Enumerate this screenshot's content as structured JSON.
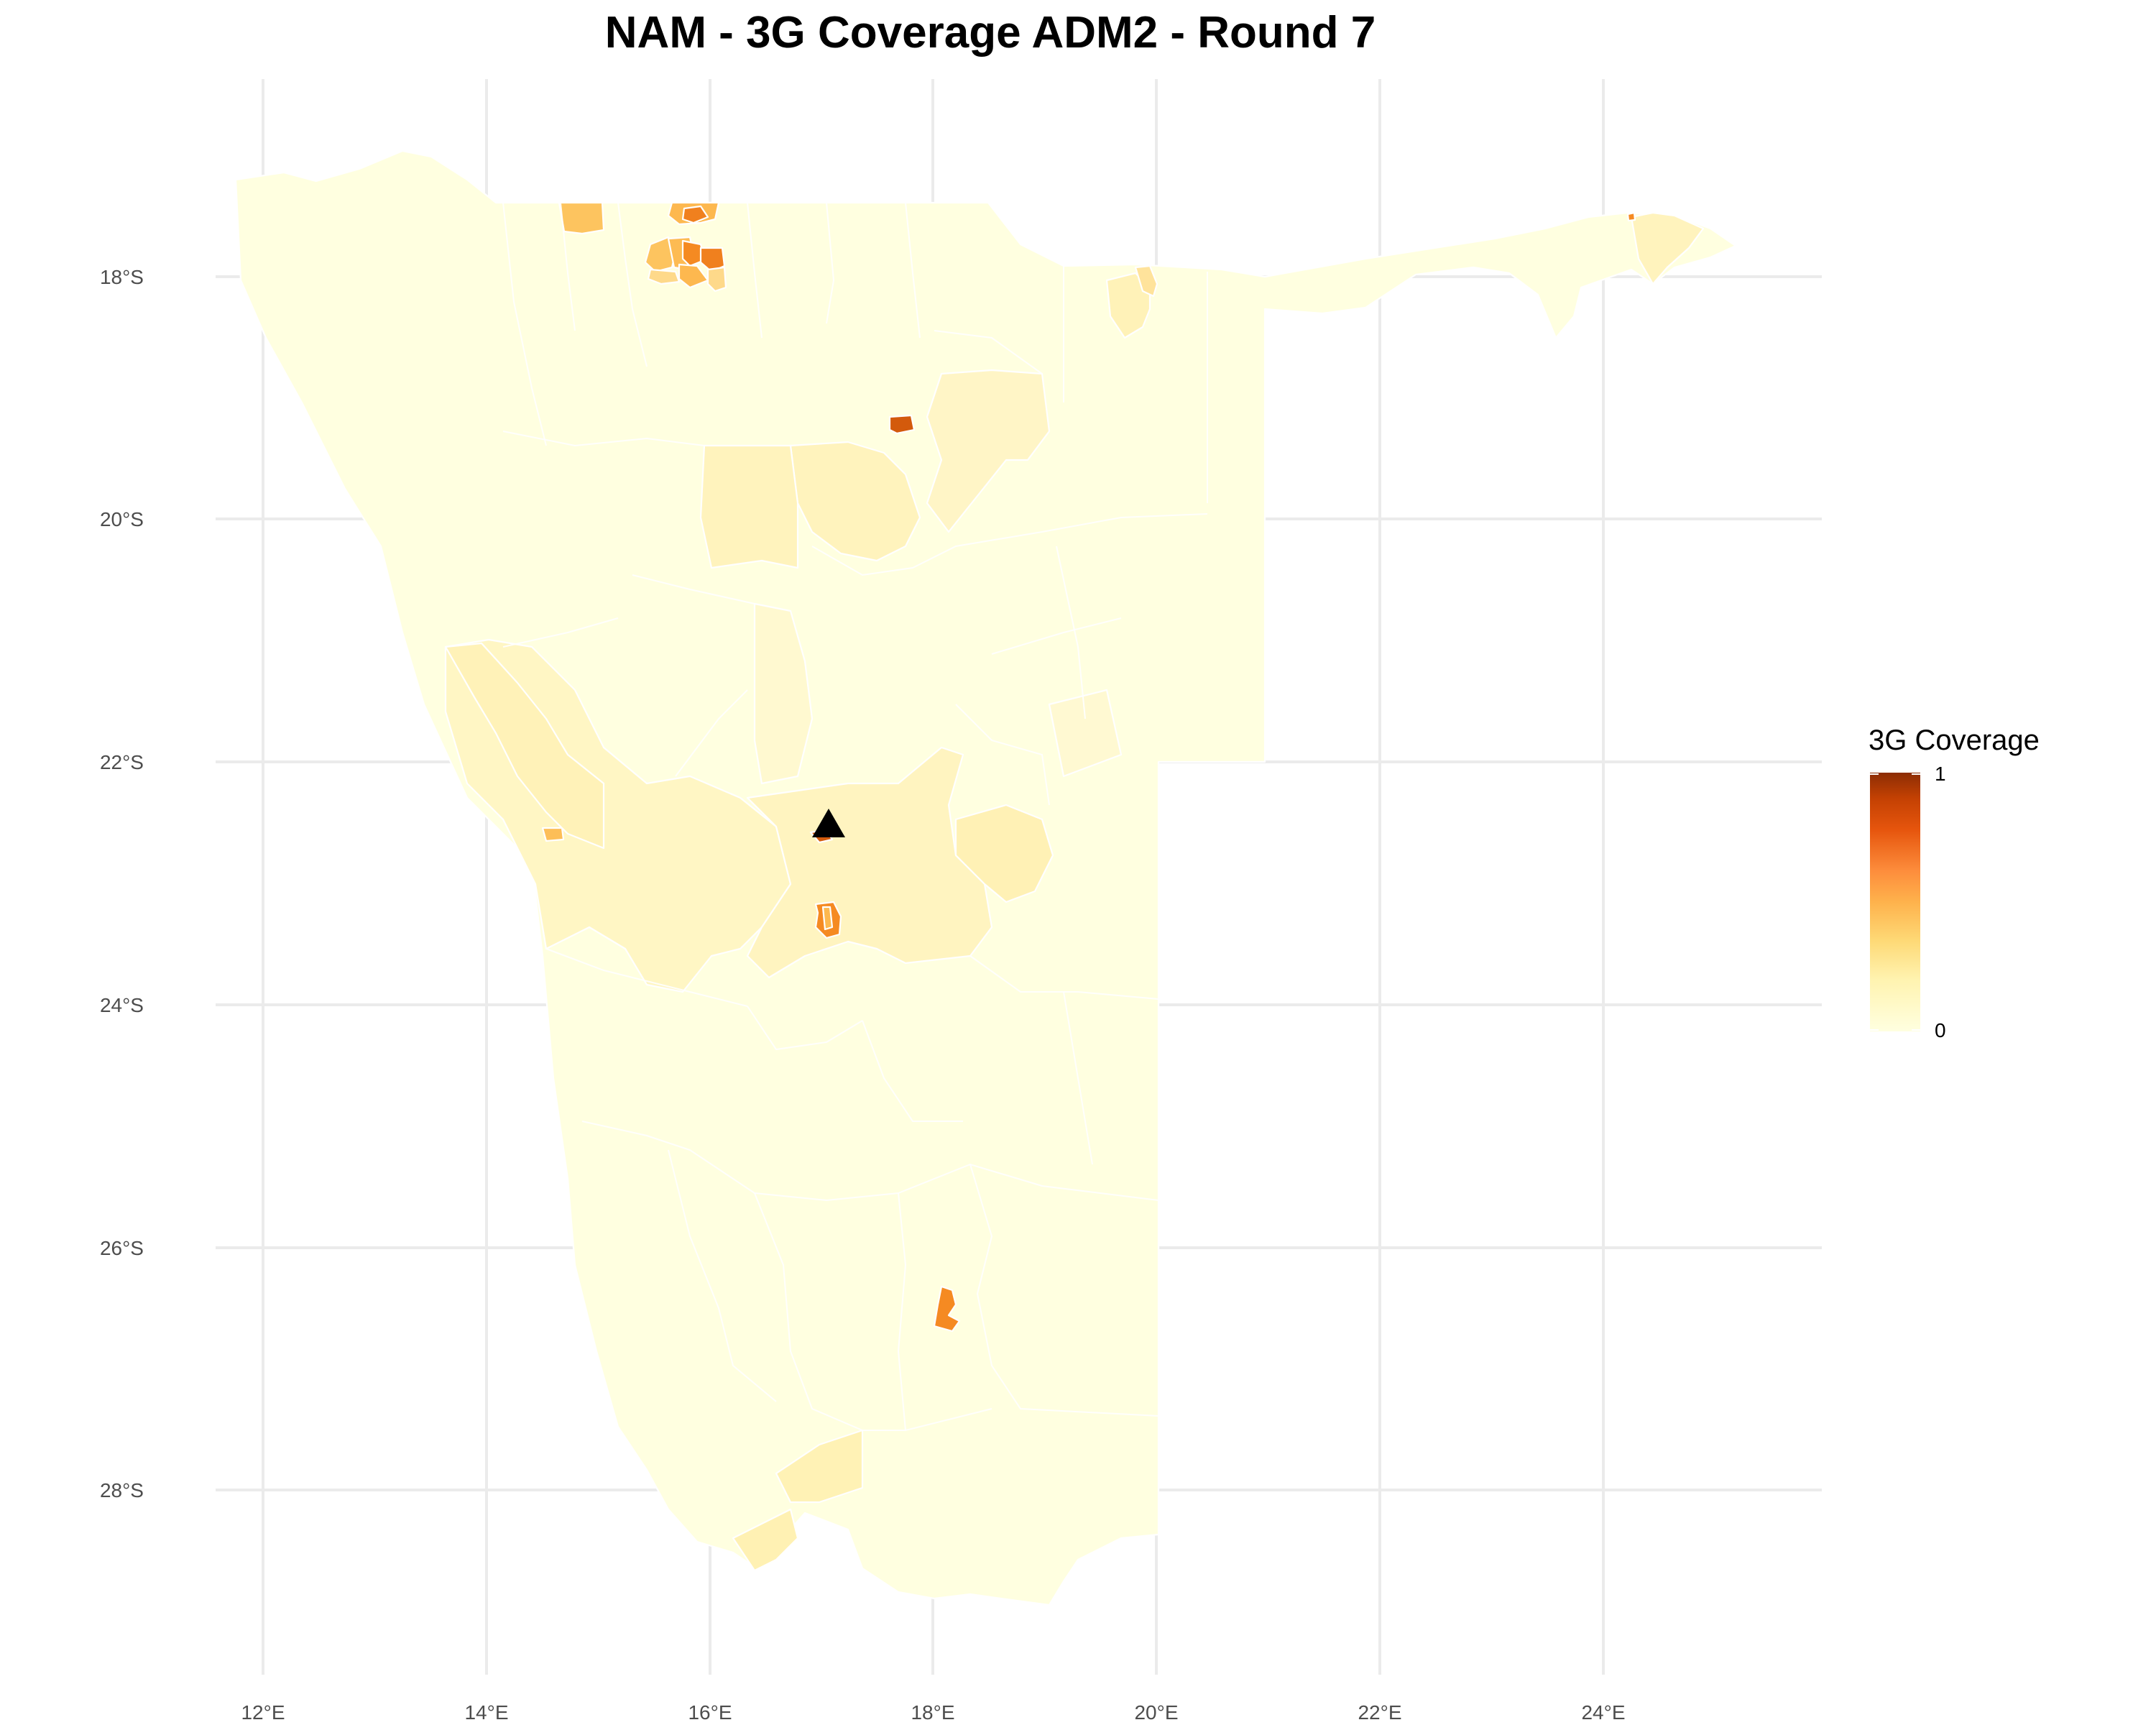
{
  "title": "NAM - 3G Coverage ADM2 - Round 7",
  "axes": {
    "x_ticks": [
      "12°E",
      "14°E",
      "16°E",
      "18°E",
      "20°E",
      "22°E",
      "24°E"
    ],
    "y_ticks": [
      "18°S",
      "20°S",
      "22°S",
      "24°S",
      "26°S",
      "28°S"
    ]
  },
  "legend": {
    "title": "3G Coverage",
    "max_label": "1",
    "min_label": "0",
    "colors": [
      "#ffffe0",
      "#fff3b0",
      "#fed976",
      "#feb24c",
      "#fd8d3c",
      "#e6550d",
      "#c44103",
      "#8c2d04"
    ]
  },
  "marker": {
    "shape": "triangle",
    "color": "#000000",
    "lon": 17.08,
    "lat": -22.56
  },
  "chart_data": {
    "type": "choropleth",
    "title": "NAM - 3G Coverage ADM2 - Round 7",
    "variable": "3G Coverage",
    "value_range": [
      0,
      1
    ],
    "xlim_deg_e": [
      11.5,
      25.5
    ],
    "ylim_deg_s": [
      17.0,
      29.2
    ],
    "grid": true,
    "legend_position": "right",
    "colors": {
      "base": "#ffffe0",
      "very_low": "#fffbd2",
      "low": "#fff3bf",
      "mid_low": "#feeaa8",
      "mid": "#fdd28a",
      "high": "#fdb548",
      "very_high": "#f58a22",
      "max": "#d35a0c"
    },
    "regions": [
      {
        "lon": 14.8,
        "lat": -17.5,
        "value": 0.35
      },
      {
        "lon": 15.9,
        "lat": -17.5,
        "value": 0.45
      },
      {
        "lon": 15.7,
        "lat": -17.9,
        "value": 0.5
      },
      {
        "lon": 17.6,
        "lat": -19.2,
        "value": 0.8
      },
      {
        "lon": 17.1,
        "lat": -23.3,
        "value": 0.6
      },
      {
        "lon": 18.1,
        "lat": -26.6,
        "value": 0.55
      },
      {
        "lon": 14.5,
        "lat": -22.6,
        "value": 0.3
      },
      {
        "lon": 19.8,
        "lat": -18.1,
        "value": 0.15
      },
      {
        "lon": 24.3,
        "lat": -17.8,
        "value": 0.15
      },
      {
        "lon": 17.0,
        "lat": -22.9,
        "value": 0.12
      },
      {
        "lon": 16.4,
        "lat": -28.2,
        "value": 0.12
      },
      {
        "lon": 13.9,
        "lat": -22.3,
        "value": 0.12
      },
      {
        "lon": 18.7,
        "lat": -22.9,
        "value": 0.1
      },
      {
        "lon": 18.2,
        "lat": -19.9,
        "value": 0.08
      },
      {
        "lon": 16.4,
        "lat": -19.9,
        "value": 0.07
      }
    ]
  }
}
